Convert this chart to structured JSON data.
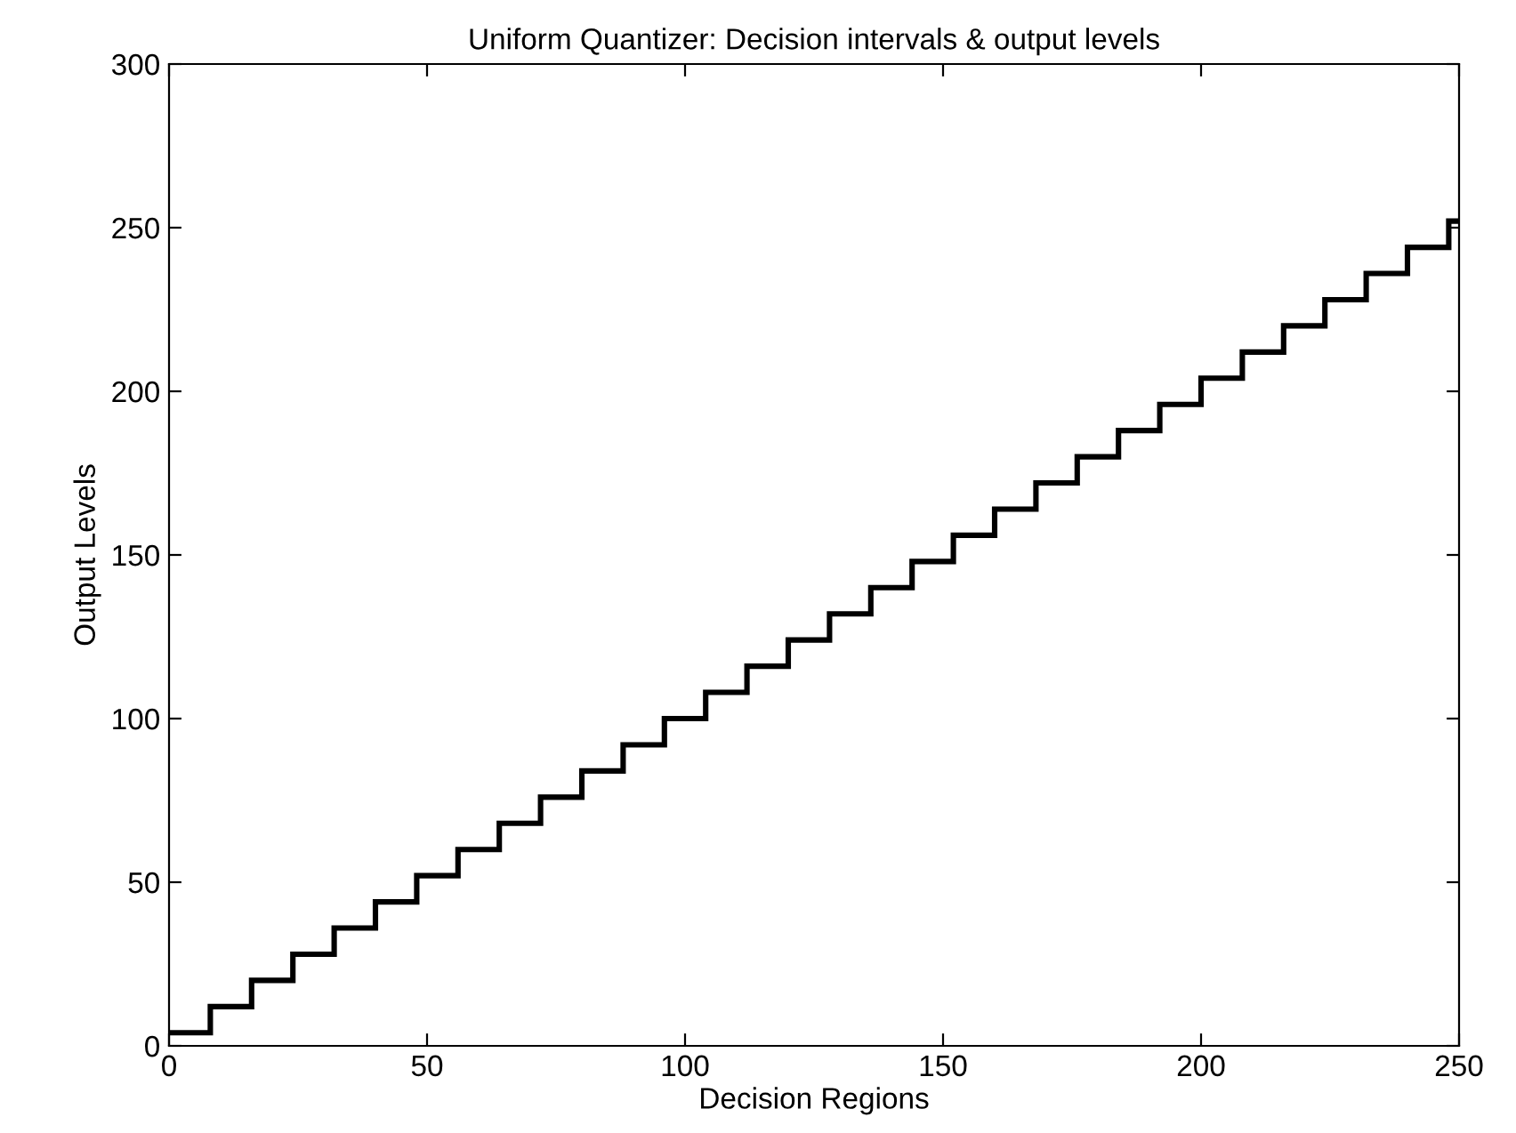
{
  "chart_data": {
    "type": "step",
    "title": "Uniform Quantizer: Decision intervals & output levels",
    "xlabel": "Decision Regions",
    "ylabel": "Output Levels",
    "series": [
      {
        "color": "#000000",
        "x": [
          0,
          8,
          16,
          24,
          32,
          40,
          48,
          56,
          64,
          72,
          80,
          88,
          96,
          104,
          112,
          120,
          128,
          136,
          144,
          152,
          160,
          168,
          176,
          184,
          192,
          200,
          208,
          216,
          224,
          232,
          240,
          248,
          250
        ],
        "values": [
          4,
          12,
          20,
          28,
          36,
          44,
          52,
          60,
          68,
          76,
          84,
          92,
          100,
          108,
          116,
          124,
          132,
          140,
          148,
          156,
          164,
          172,
          180,
          188,
          196,
          204,
          212,
          220,
          228,
          236,
          244,
          252,
          252
        ]
      }
    ],
    "xlim": [
      0,
      250
    ],
    "xticks": [
      0,
      50,
      100,
      150,
      200,
      250
    ],
    "ylim": [
      0,
      300
    ],
    "yticks": [
      0,
      50,
      100,
      150,
      200,
      250,
      300
    ],
    "grid": false,
    "line_style": "solid"
  }
}
